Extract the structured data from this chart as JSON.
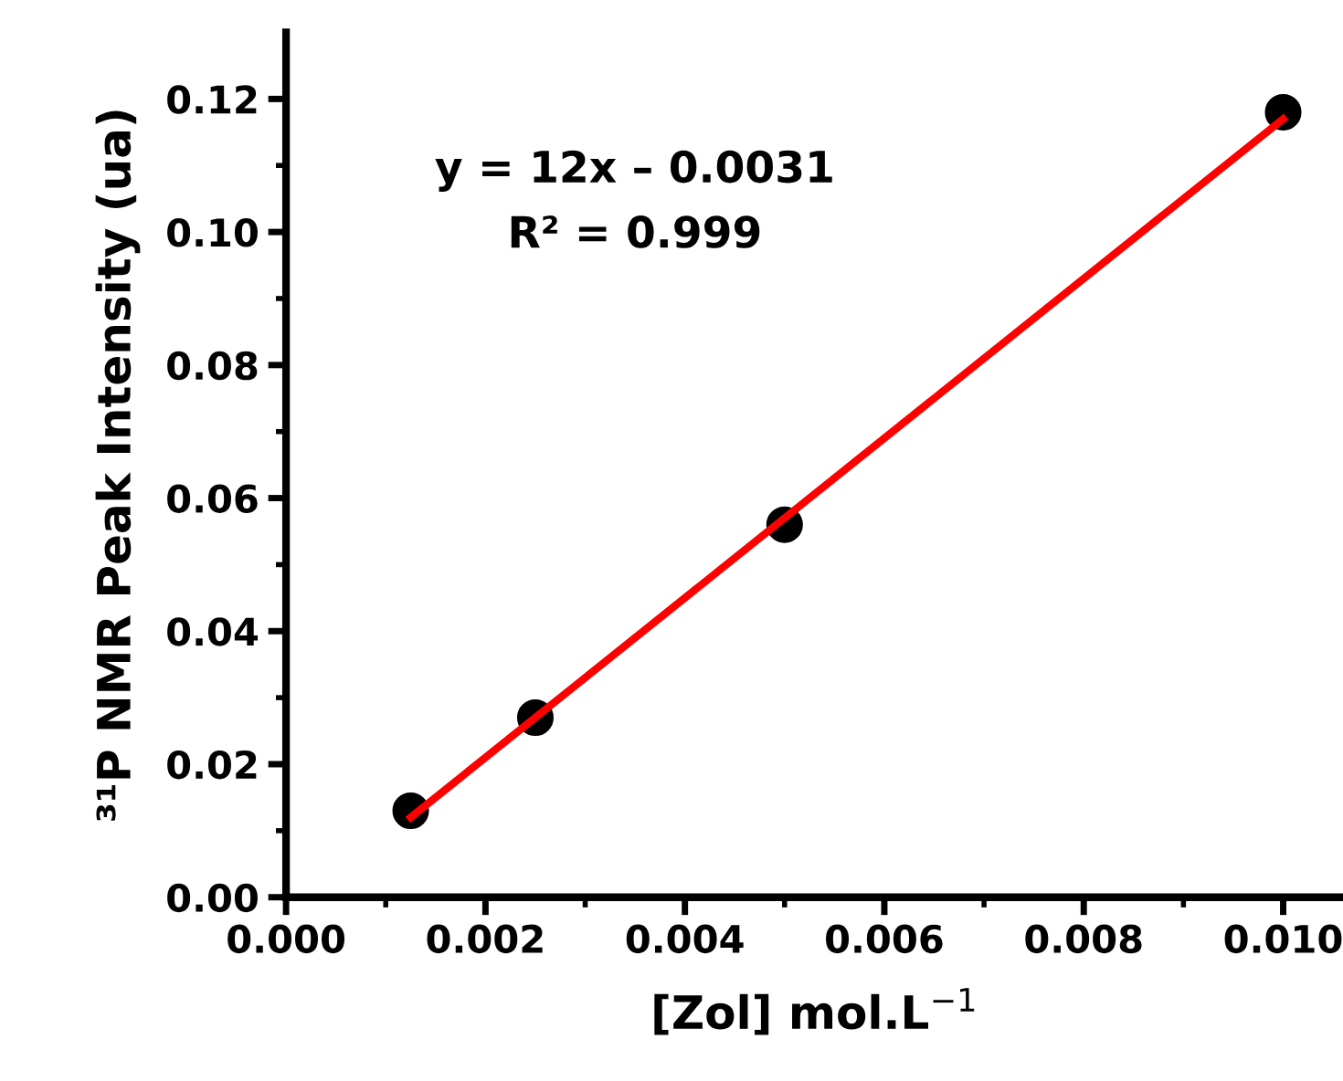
{
  "chart_data": {
    "type": "scatter",
    "xlabel": "[Zol] mol.L$^{−1}$",
    "ylabel": "³¹P NMR Peak Intensity (ua)",
    "annotations": [
      "y = 12x – 0.0031",
      "R² = 0.999"
    ],
    "x": [
      0.00125,
      0.0025,
      0.005,
      0.01
    ],
    "series": [
      {
        "type": "line",
        "color": "#ff0000",
        "x": [
          0.00125,
          0.01
        ],
        "values": [
          0.012,
          0.117
        ],
        "marker": "none",
        "line_style": "solid"
      },
      {
        "color": "#000000",
        "values": [
          0.013,
          0.027,
          0.056,
          0.118
        ],
        "marker": "circle"
      }
    ],
    "xlim": [
      0,
      0.0106
    ],
    "xticks": [
      {
        "value": 0,
        "label": "0.000"
      },
      {
        "value": 0.002,
        "label": "0.002"
      },
      {
        "value": 0.004,
        "label": "0.004"
      },
      {
        "value": 0.006,
        "label": "0.006"
      },
      {
        "value": 0.008,
        "label": "0.008"
      },
      {
        "value": 0.01,
        "label": "0.010"
      }
    ],
    "ylim": [
      0,
      0.13
    ],
    "yticks": [
      {
        "value": 0,
        "label": "0.00"
      },
      {
        "value": 0.02,
        "label": "0.02"
      },
      {
        "value": 0.04,
        "label": "0.04"
      },
      {
        "value": 0.06,
        "label": "0.06"
      },
      {
        "value": 0.08,
        "label": "0.08"
      },
      {
        "value": 0.1,
        "label": "0.10"
      },
      {
        "value": 0.12,
        "label": "0.12"
      }
    ],
    "grid": false,
    "legend": false
  }
}
